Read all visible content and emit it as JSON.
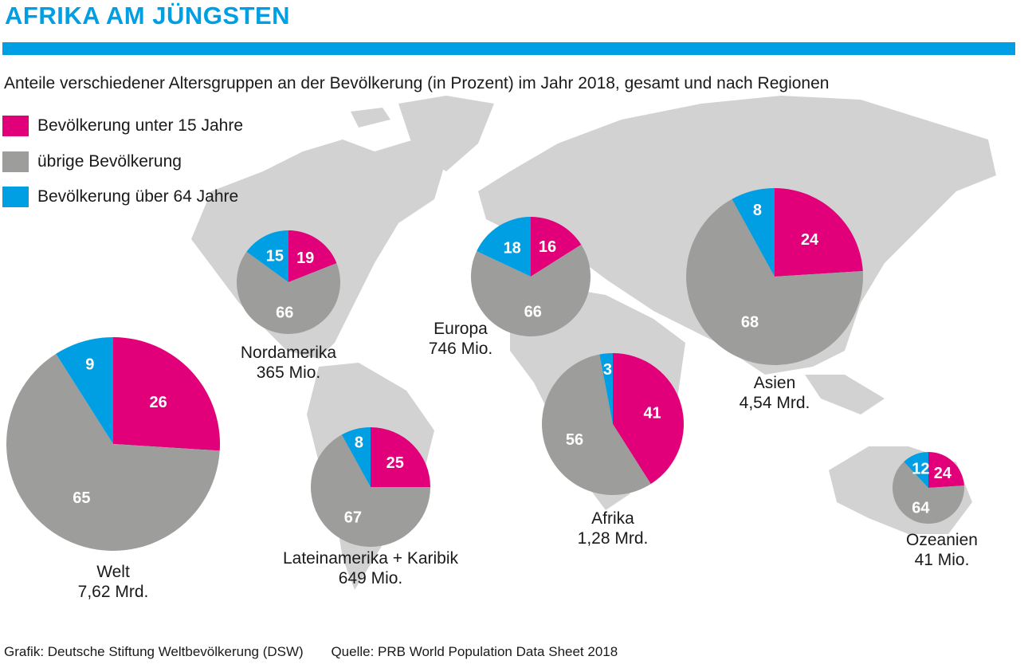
{
  "title": "AFRIKA AM JÜNGSTEN",
  "subtitle": "Anteile verschiedener Altersgruppen an der Bevölkerung (in Prozent) im Jahr 2018, gesamt und nach Regionen",
  "footer": {
    "grafik": "Grafik: Deutsche Stiftung Weltbevölkerung (DSW)",
    "quelle": "Quelle: PRB World Population Data Sheet 2018"
  },
  "chart_data": {
    "type": "pie",
    "title": "AFRIKA AM JÜNGSTEN",
    "legend": [
      {
        "name": "Bevölkerung unter 15 Jahre",
        "color": "#e2007a"
      },
      {
        "name": "übrige Bevölkerung",
        "color": "#9d9d9c"
      },
      {
        "name": "Bevölkerung über 64 Jahre",
        "color": "#009fe3"
      }
    ],
    "legend_position": "top-left",
    "pies": [
      {
        "region": "Welt",
        "population": "7,62 Mrd.",
        "values": [
          26,
          65,
          9
        ]
      },
      {
        "region": "Nordamerika",
        "population": "365 Mio.",
        "values": [
          19,
          66,
          15
        ]
      },
      {
        "region": "Lateinamerika + Karibik",
        "population": "649 Mio.",
        "values": [
          25,
          67,
          8
        ]
      },
      {
        "region": "Europa",
        "population": "746 Mio.",
        "values": [
          16,
          66,
          18
        ]
      },
      {
        "region": "Afrika",
        "population": "1,28 Mrd.",
        "values": [
          41,
          56,
          3
        ]
      },
      {
        "region": "Asien",
        "population": "4,54 Mrd.",
        "values": [
          24,
          68,
          8
        ]
      },
      {
        "region": "Ozeanien",
        "population": "41 Mio.",
        "values": [
          24,
          64,
          12
        ]
      }
    ]
  }
}
